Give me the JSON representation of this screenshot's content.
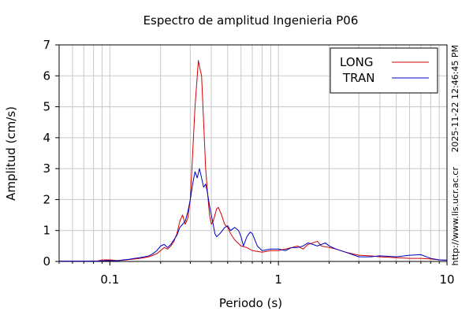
{
  "chart_data": {
    "type": "line",
    "title": "Espectro de amplitud Ingenieria P06",
    "xlabel": "Periodo (s)",
    "ylabel": "Amplitud (cm/s)",
    "x_scale": "log",
    "xlim": [
      0.05,
      10
    ],
    "ylim": [
      0,
      7
    ],
    "x_ticks": [
      0.1,
      1,
      10
    ],
    "x_tick_labels": [
      "0.1",
      "1",
      "10"
    ],
    "y_ticks": [
      0,
      1,
      2,
      3,
      4,
      5,
      6,
      7
    ],
    "y_tick_labels": [
      "0",
      "1",
      "2",
      "3",
      "4",
      "5",
      "6",
      "7"
    ],
    "grid": true,
    "legend_position": "top-right",
    "side_text": {
      "timestamp": "2025-11-22 12:46:45 PM",
      "url": "http://www.lis.ucr.ac.cr"
    },
    "series": [
      {
        "name": "LONG",
        "color": "#d40000",
        "points": [
          [
            0.05,
            0.01
          ],
          [
            0.07,
            0.01
          ],
          [
            0.085,
            0.02
          ],
          [
            0.09,
            0.05
          ],
          [
            0.1,
            0.05
          ],
          [
            0.11,
            0.03
          ],
          [
            0.12,
            0.04
          ],
          [
            0.13,
            0.06
          ],
          [
            0.14,
            0.08
          ],
          [
            0.15,
            0.1
          ],
          [
            0.16,
            0.12
          ],
          [
            0.17,
            0.15
          ],
          [
            0.18,
            0.2
          ],
          [
            0.19,
            0.25
          ],
          [
            0.2,
            0.35
          ],
          [
            0.21,
            0.45
          ],
          [
            0.22,
            0.4
          ],
          [
            0.23,
            0.5
          ],
          [
            0.24,
            0.65
          ],
          [
            0.25,
            0.9
          ],
          [
            0.26,
            1.3
          ],
          [
            0.27,
            1.5
          ],
          [
            0.28,
            1.2
          ],
          [
            0.29,
            1.4
          ],
          [
            0.3,
            2.0
          ],
          [
            0.31,
            3.5
          ],
          [
            0.32,
            5.0
          ],
          [
            0.33,
            6.0
          ],
          [
            0.335,
            6.5
          ],
          [
            0.34,
            6.3
          ],
          [
            0.35,
            6.0
          ],
          [
            0.36,
            4.5
          ],
          [
            0.37,
            3.0
          ],
          [
            0.38,
            2.2
          ],
          [
            0.39,
            1.5
          ],
          [
            0.4,
            1.2
          ],
          [
            0.41,
            1.3
          ],
          [
            0.42,
            1.5
          ],
          [
            0.43,
            1.7
          ],
          [
            0.44,
            1.75
          ],
          [
            0.46,
            1.5
          ],
          [
            0.48,
            1.2
          ],
          [
            0.5,
            1.1
          ],
          [
            0.52,
            0.9
          ],
          [
            0.55,
            0.7
          ],
          [
            0.6,
            0.5
          ],
          [
            0.65,
            0.45
          ],
          [
            0.7,
            0.35
          ],
          [
            0.8,
            0.3
          ],
          [
            0.9,
            0.35
          ],
          [
            1.0,
            0.35
          ],
          [
            1.1,
            0.4
          ],
          [
            1.2,
            0.45
          ],
          [
            1.3,
            0.5
          ],
          [
            1.4,
            0.4
          ],
          [
            1.5,
            0.55
          ],
          [
            1.6,
            0.6
          ],
          [
            1.7,
            0.65
          ],
          [
            1.8,
            0.5
          ],
          [
            2.0,
            0.45
          ],
          [
            2.2,
            0.4
          ],
          [
            2.5,
            0.3
          ],
          [
            3.0,
            0.2
          ],
          [
            3.5,
            0.18
          ],
          [
            4.0,
            0.15
          ],
          [
            5.0,
            0.12
          ],
          [
            6.0,
            0.1
          ],
          [
            7.0,
            0.1
          ],
          [
            8.0,
            0.08
          ],
          [
            9.0,
            0.05
          ],
          [
            10.0,
            0.04
          ]
        ]
      },
      {
        "name": "TRAN",
        "color": "#0000c0",
        "points": [
          [
            0.05,
            0.01
          ],
          [
            0.07,
            0.01
          ],
          [
            0.085,
            0.01
          ],
          [
            0.09,
            0.02
          ],
          [
            0.1,
            0.03
          ],
          [
            0.11,
            0.02
          ],
          [
            0.12,
            0.05
          ],
          [
            0.13,
            0.07
          ],
          [
            0.14,
            0.1
          ],
          [
            0.15,
            0.12
          ],
          [
            0.16,
            0.15
          ],
          [
            0.17,
            0.18
          ],
          [
            0.18,
            0.25
          ],
          [
            0.19,
            0.35
          ],
          [
            0.2,
            0.5
          ],
          [
            0.21,
            0.55
          ],
          [
            0.22,
            0.45
          ],
          [
            0.23,
            0.55
          ],
          [
            0.24,
            0.7
          ],
          [
            0.25,
            0.85
          ],
          [
            0.26,
            1.1
          ],
          [
            0.27,
            1.2
          ],
          [
            0.28,
            1.3
          ],
          [
            0.29,
            1.6
          ],
          [
            0.3,
            2.0
          ],
          [
            0.31,
            2.5
          ],
          [
            0.32,
            2.9
          ],
          [
            0.33,
            2.7
          ],
          [
            0.34,
            3.0
          ],
          [
            0.35,
            2.7
          ],
          [
            0.36,
            2.4
          ],
          [
            0.37,
            2.5
          ],
          [
            0.38,
            2.2
          ],
          [
            0.39,
            1.8
          ],
          [
            0.4,
            1.5
          ],
          [
            0.41,
            1.2
          ],
          [
            0.42,
            0.9
          ],
          [
            0.43,
            0.8
          ],
          [
            0.45,
            0.9
          ],
          [
            0.48,
            1.1
          ],
          [
            0.5,
            1.15
          ],
          [
            0.52,
            1.0
          ],
          [
            0.55,
            1.1
          ],
          [
            0.58,
            1.0
          ],
          [
            0.6,
            0.8
          ],
          [
            0.62,
            0.5
          ],
          [
            0.65,
            0.8
          ],
          [
            0.68,
            0.95
          ],
          [
            0.7,
            0.9
          ],
          [
            0.75,
            0.5
          ],
          [
            0.8,
            0.35
          ],
          [
            0.9,
            0.4
          ],
          [
            1.0,
            0.4
          ],
          [
            1.1,
            0.35
          ],
          [
            1.2,
            0.45
          ],
          [
            1.3,
            0.45
          ],
          [
            1.4,
            0.5
          ],
          [
            1.5,
            0.6
          ],
          [
            1.6,
            0.55
          ],
          [
            1.7,
            0.5
          ],
          [
            1.8,
            0.55
          ],
          [
            1.9,
            0.6
          ],
          [
            2.0,
            0.5
          ],
          [
            2.2,
            0.4
          ],
          [
            2.5,
            0.3
          ],
          [
            3.0,
            0.15
          ],
          [
            3.5,
            0.15
          ],
          [
            4.0,
            0.18
          ],
          [
            5.0,
            0.15
          ],
          [
            6.0,
            0.2
          ],
          [
            7.0,
            0.22
          ],
          [
            8.0,
            0.1
          ],
          [
            9.0,
            0.05
          ],
          [
            10.0,
            0.04
          ]
        ]
      }
    ]
  }
}
